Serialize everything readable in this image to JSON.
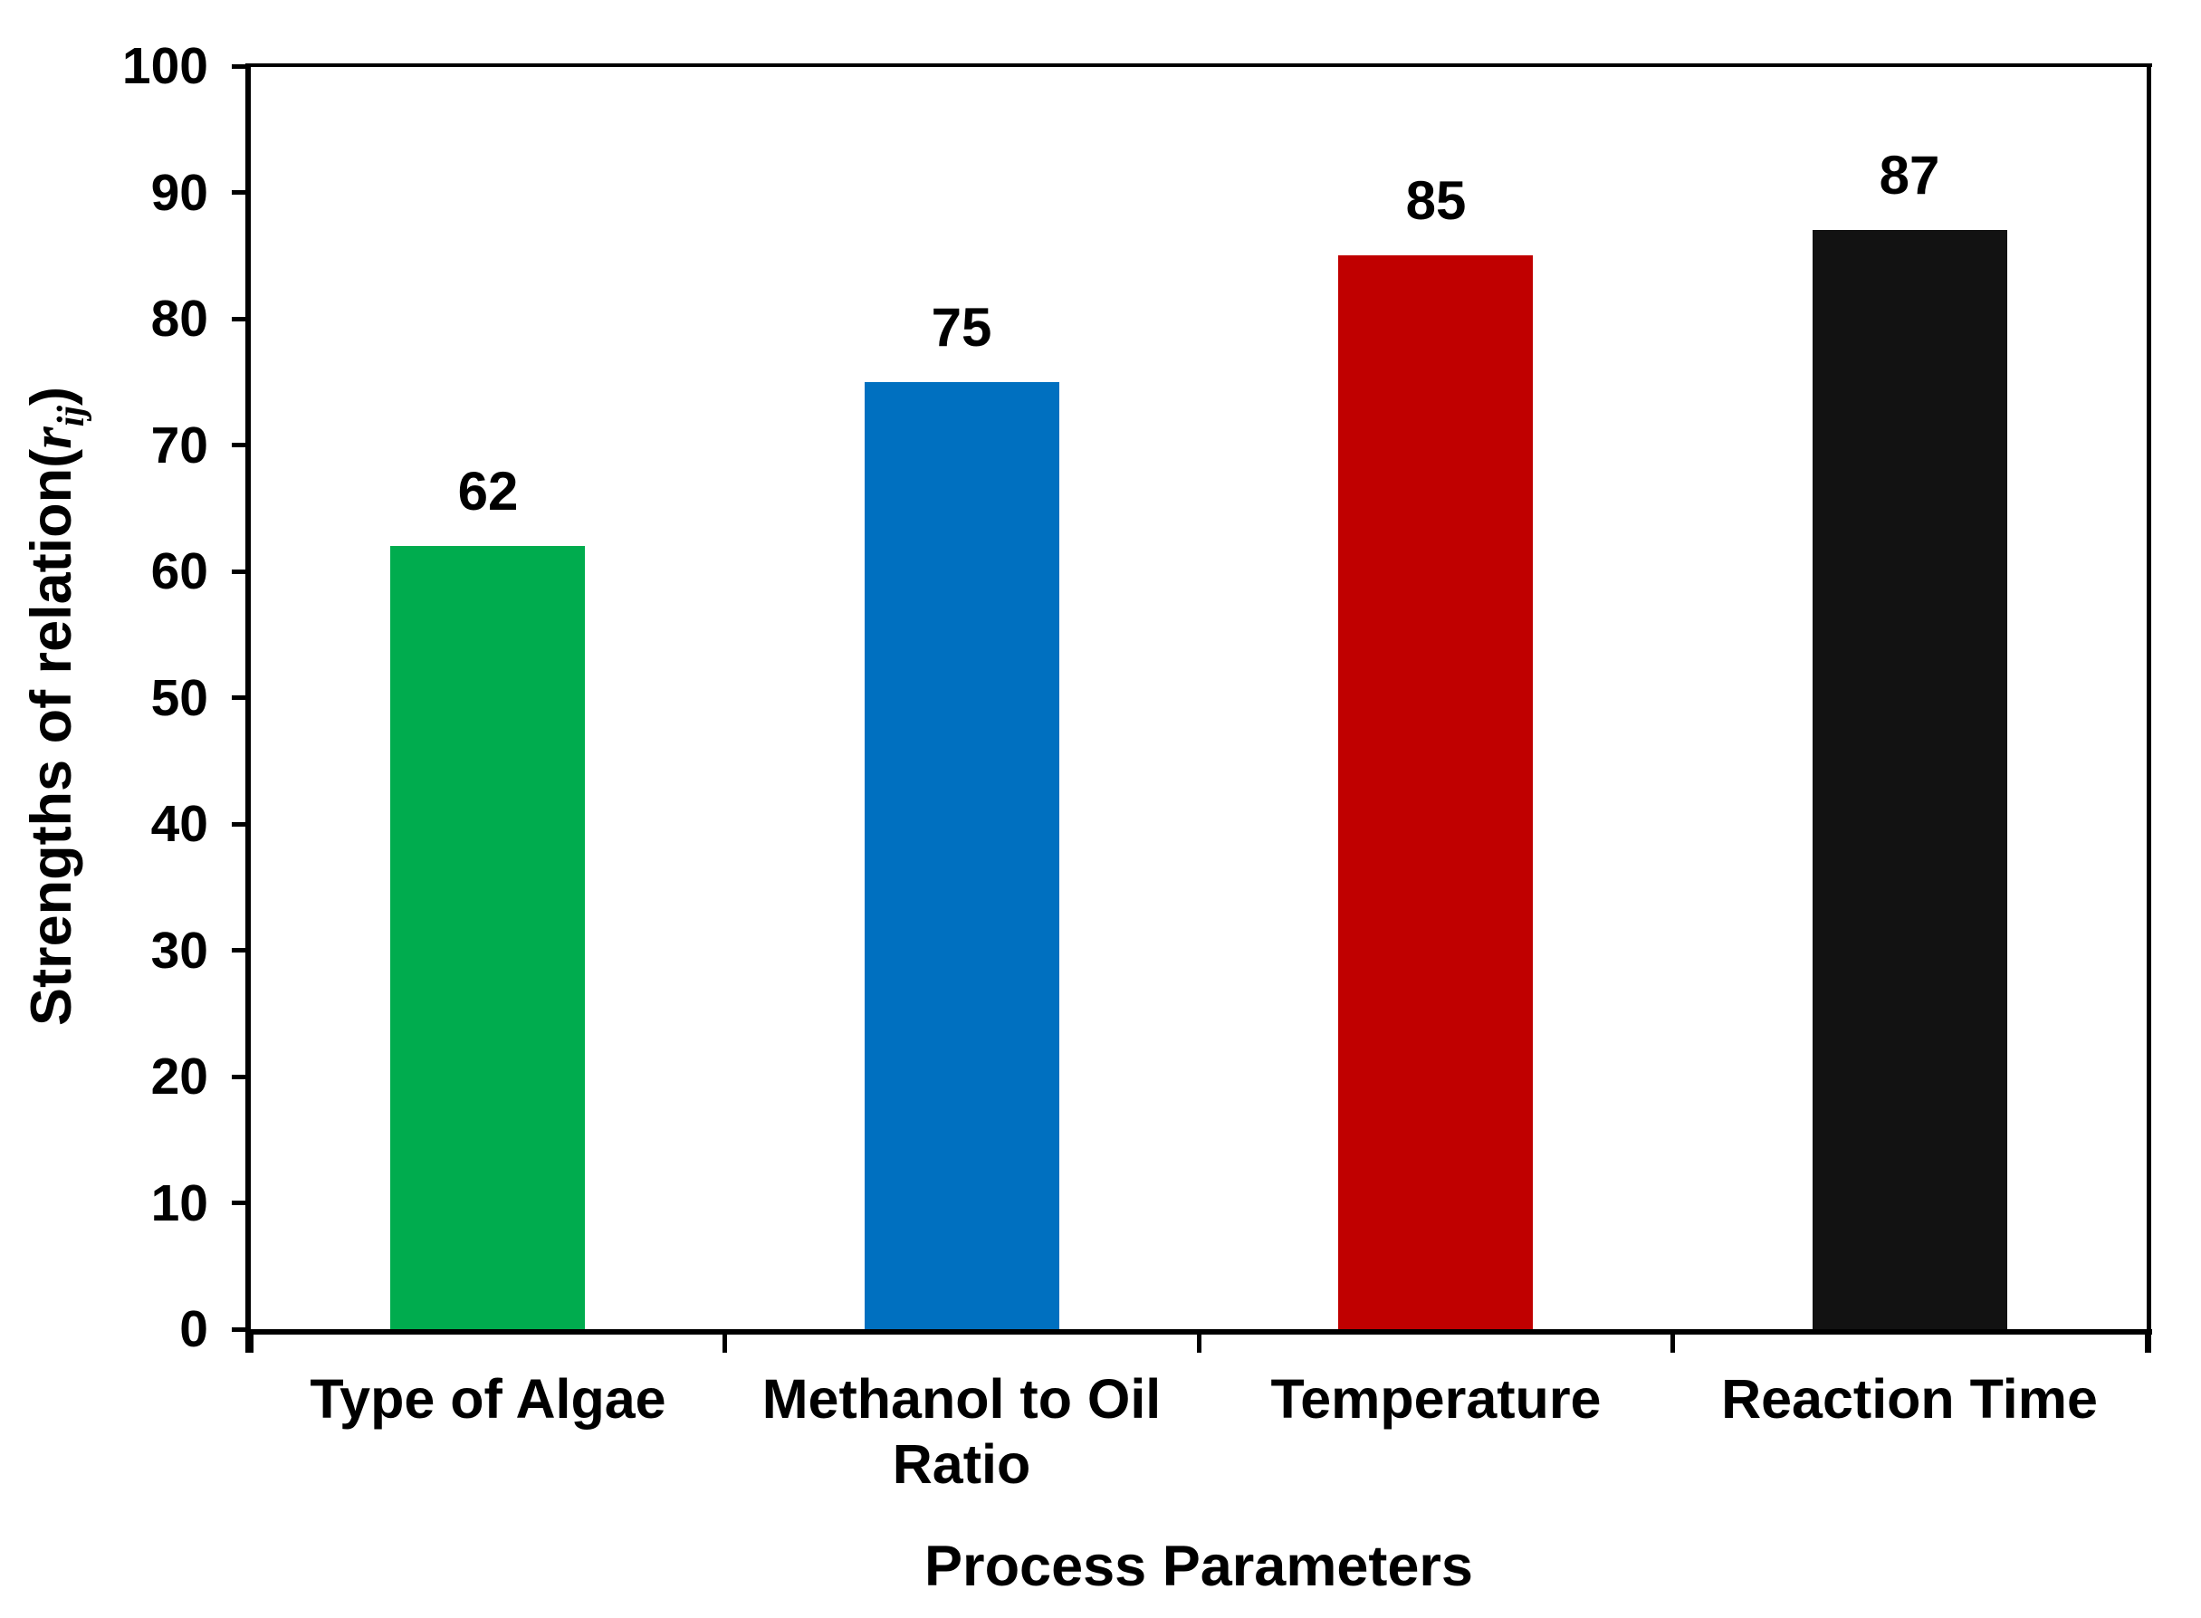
{
  "chart_data": {
    "type": "bar",
    "title": "",
    "xlabel": "Process Parameters",
    "ylabel": "Strengths of relation(r ij)",
    "ylabel_parts": {
      "prefix": "Strengths of relation(",
      "symbol": "r",
      "subscript": "ij",
      "suffix": ")"
    },
    "categories": [
      "Type of Algae",
      "Methanol to Oil Ratio",
      "Temperature",
      "Reaction Time"
    ],
    "values": [
      62,
      75,
      85,
      87
    ],
    "bar_colors": [
      "#00AC4E",
      "#0070C0",
      "#C00000",
      "#121212"
    ],
    "ylim": [
      0,
      100
    ],
    "yticks": [
      0,
      10,
      20,
      30,
      40,
      50,
      60,
      70,
      80,
      90,
      100
    ],
    "grid": false,
    "legend_position": "none",
    "axis_color": "#000000",
    "text_color": "#000000",
    "background_color": "#ffffff"
  }
}
